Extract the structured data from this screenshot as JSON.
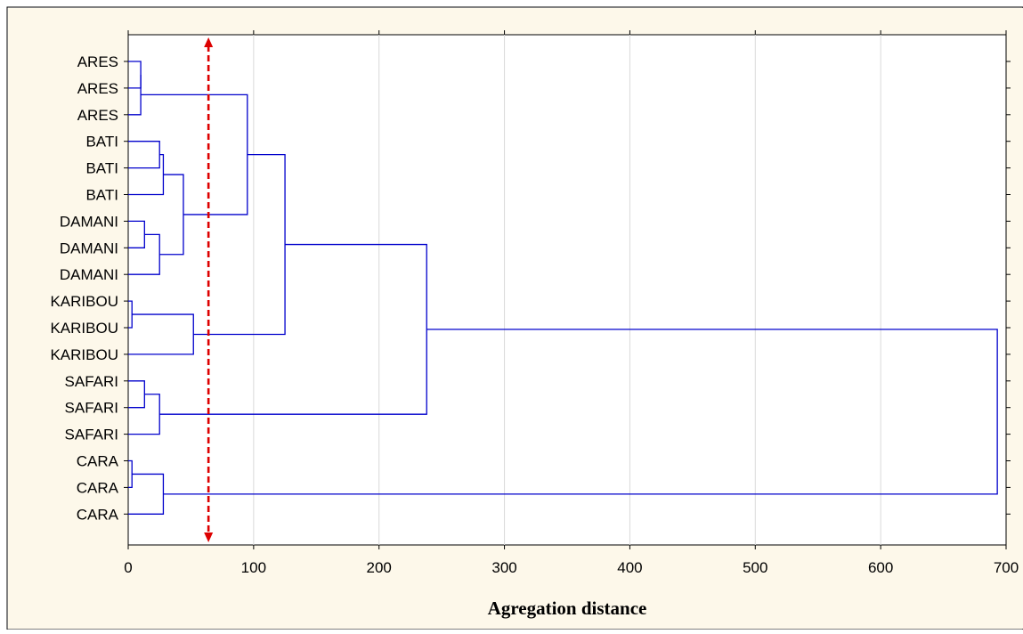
{
  "chart_data": {
    "type": "dendrogram",
    "orientation": "horizontal",
    "xlabel": "Agregation distance",
    "xlim": [
      0,
      700
    ],
    "x_ticks": [
      0,
      100,
      200,
      300,
      400,
      500,
      600,
      700
    ],
    "x_tick_labels": [
      "0",
      "100",
      "200",
      "300",
      "400",
      "500",
      "600",
      "700"
    ],
    "grid": "vertical",
    "leaves": [
      "ARES",
      "ARES",
      "ARES",
      "BATI",
      "BATI",
      "BATI",
      "DAMANI",
      "DAMANI",
      "DAMANI",
      "KARIBOU",
      "KARIBOU",
      "KARIBOU",
      "SAFARI",
      "SAFARI",
      "SAFARI",
      "CARA",
      "CARA",
      "CARA"
    ],
    "merges": [
      {
        "id": "n1",
        "children": [
          "L0",
          "L1"
        ],
        "height": 10
      },
      {
        "id": "n2",
        "children": [
          "n1",
          "L2"
        ],
        "height": 10
      },
      {
        "id": "n3",
        "children": [
          "L3",
          "L4"
        ],
        "height": 25
      },
      {
        "id": "n4",
        "children": [
          "n3",
          "L5"
        ],
        "height": 28
      },
      {
        "id": "n5",
        "children": [
          "L6",
          "L7"
        ],
        "height": 13
      },
      {
        "id": "n6",
        "children": [
          "n5",
          "L8"
        ],
        "height": 25
      },
      {
        "id": "n7",
        "children": [
          "n4",
          "n6"
        ],
        "height": 44
      },
      {
        "id": "n8",
        "children": [
          "n2",
          "n7"
        ],
        "height": 95
      },
      {
        "id": "n9",
        "children": [
          "L9",
          "L10"
        ],
        "height": 3
      },
      {
        "id": "n10",
        "children": [
          "n9",
          "L11"
        ],
        "height": 52
      },
      {
        "id": "n11",
        "children": [
          "n8",
          "n10"
        ],
        "height": 125
      },
      {
        "id": "n12",
        "children": [
          "L12",
          "L13"
        ],
        "height": 13
      },
      {
        "id": "n13",
        "children": [
          "n12",
          "L14"
        ],
        "height": 25
      },
      {
        "id": "n14",
        "children": [
          "n11",
          "n13"
        ],
        "height": 238
      },
      {
        "id": "n15",
        "children": [
          "L15",
          "L16"
        ],
        "height": 3
      },
      {
        "id": "n16",
        "children": [
          "n15",
          "L17"
        ],
        "height": 28
      },
      {
        "id": "n17",
        "children": [
          "n14",
          "n16"
        ],
        "height": 693
      }
    ],
    "cut_line": {
      "distance": 64,
      "style": "dashed",
      "arrows": "both"
    },
    "colors": {
      "dendrogram": "#0000cc",
      "cut_line": "#dd0000",
      "panel_background": "#fdf8ea",
      "plot_background": "#ffffff",
      "grid": "#d9d9d9"
    }
  }
}
